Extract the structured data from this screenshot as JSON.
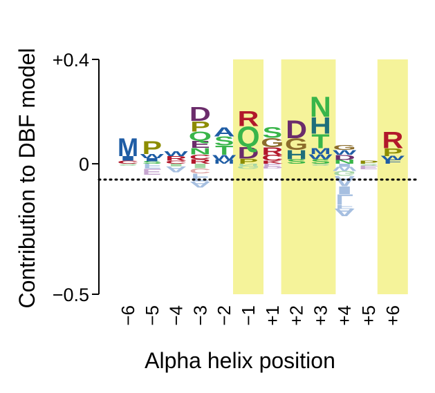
{
  "chart_data": {
    "type": "sequence-logo",
    "xlabel": "Alpha helix position",
    "ylabel": "Contribution to DBF model",
    "ytick_labels": [
      "+0.4",
      "0",
      "−0.5"
    ],
    "yticks": [
      0.4,
      0,
      -0.5
    ],
    "ylim": [
      -0.5,
      0.4
    ],
    "categories": [
      "−6",
      "−5",
      "−4",
      "−3",
      "−2",
      "−1",
      "+1",
      "+2",
      "+3",
      "+4",
      "+5",
      "+6"
    ],
    "highlighted_positions": [
      "−1",
      "+2",
      "+3",
      "+6"
    ],
    "highlight_color": "#f5f39a",
    "zero_line": "dotted",
    "positions": [
      {
        "pos": "−6",
        "positive": [
          {
            "aa": "C",
            "v": 0.012,
            "color": "#b2182b"
          },
          {
            "aa": "I",
            "v": 0.018,
            "color": "#1f5da5"
          },
          {
            "aa": "M",
            "v": 0.07,
            "color": "#1f5da5"
          }
        ],
        "negative": [
          {
            "aa": "S",
            "v": 0.008,
            "color": "#a6d6a6"
          }
        ]
      },
      {
        "pos": "−5",
        "positive": [
          {
            "aa": "S",
            "v": 0.01,
            "color": "#39b54a"
          },
          {
            "aa": "I",
            "v": 0.012,
            "color": "#1f5da5"
          },
          {
            "aa": "W",
            "v": 0.015,
            "color": "#1f5da5"
          },
          {
            "aa": "P",
            "v": 0.052,
            "color": "#8c8c00"
          }
        ],
        "negative": [
          {
            "aa": "F",
            "v": 0.02,
            "color": "#a6bfe0"
          },
          {
            "aa": "E",
            "v": 0.022,
            "color": "#c6a6d0"
          }
        ]
      },
      {
        "pos": "−4",
        "positive": [
          {
            "aa": "C",
            "v": 0.012,
            "color": "#b2182b"
          },
          {
            "aa": "R",
            "v": 0.018,
            "color": "#b2182b"
          },
          {
            "aa": "W",
            "v": 0.02,
            "color": "#1f5da5"
          }
        ],
        "negative": [
          {
            "aa": "I",
            "v": 0.01,
            "color": "#a6d6a6"
          },
          {
            "aa": "A",
            "v": 0.022,
            "color": "#a6bfe0"
          }
        ]
      },
      {
        "pos": "−3",
        "positive": [
          {
            "aa": "R",
            "v": 0.018,
            "color": "#b2182b"
          },
          {
            "aa": "C",
            "v": 0.018,
            "color": "#b2182b"
          },
          {
            "aa": "N",
            "v": 0.025,
            "color": "#39b54a"
          },
          {
            "aa": "E",
            "v": 0.028,
            "color": "#6b2c6b"
          },
          {
            "aa": "Q",
            "v": 0.035,
            "color": "#39b54a"
          },
          {
            "aa": "P",
            "v": 0.04,
            "color": "#8c8c00"
          },
          {
            "aa": "D",
            "v": 0.055,
            "color": "#6b2c6b"
          }
        ],
        "negative": [
          {
            "aa": "I",
            "v": 0.018,
            "color": "#a6d6a6"
          },
          {
            "aa": "C",
            "v": 0.02,
            "color": "#e0a6a6"
          },
          {
            "aa": "F",
            "v": 0.03,
            "color": "#a6bfe0"
          },
          {
            "aa": "A",
            "v": 0.022,
            "color": "#a6bfe0"
          }
        ]
      },
      {
        "pos": "−2",
        "positive": [
          {
            "aa": "M",
            "v": 0.015,
            "color": "#1f5da5"
          },
          {
            "aa": "W",
            "v": 0.02,
            "color": "#1f5da5"
          },
          {
            "aa": "T",
            "v": 0.035,
            "color": "#39b54a"
          },
          {
            "aa": "S",
            "v": 0.035,
            "color": "#39b54a"
          },
          {
            "aa": "A",
            "v": 0.035,
            "color": "#1f5da5"
          }
        ],
        "negative": []
      },
      {
        "pos": "−1",
        "positive": [
          {
            "aa": "P",
            "v": 0.02,
            "color": "#8c8c00"
          },
          {
            "aa": "D",
            "v": 0.045,
            "color": "#6b2c6b"
          },
          {
            "aa": "Q",
            "v": 0.08,
            "color": "#39b54a"
          },
          {
            "aa": "R",
            "v": 0.06,
            "color": "#b2182b"
          }
        ],
        "negative": [
          {
            "aa": "N",
            "v": 0.008,
            "color": "#a6d6a6"
          },
          {
            "aa": "G",
            "v": 0.012,
            "color": "#a6d6a6"
          }
        ]
      },
      {
        "pos": "+1",
        "positive": [
          {
            "aa": "K",
            "v": 0.012,
            "color": "#b2182b"
          },
          {
            "aa": "C",
            "v": 0.022,
            "color": "#b2182b"
          },
          {
            "aa": "R",
            "v": 0.03,
            "color": "#b2182b"
          },
          {
            "aa": "G",
            "v": 0.035,
            "color": "#8c6d2c"
          },
          {
            "aa": "S",
            "v": 0.042,
            "color": "#39b54a"
          }
        ],
        "negative": [
          {
            "aa": "E",
            "v": 0.01,
            "color": "#c6a6d0"
          },
          {
            "aa": "D",
            "v": 0.008,
            "color": "#c6a6d0"
          }
        ]
      },
      {
        "pos": "+2",
        "positive": [
          {
            "aa": "S",
            "v": 0.018,
            "color": "#39b54a"
          },
          {
            "aa": "H",
            "v": 0.035,
            "color": "#1f6f7a"
          },
          {
            "aa": "G",
            "v": 0.045,
            "color": "#8c6d2c"
          },
          {
            "aa": "D",
            "v": 0.07,
            "color": "#6b2c6b"
          }
        ],
        "negative": []
      },
      {
        "pos": "+3",
        "positive": [
          {
            "aa": "S",
            "v": 0.018,
            "color": "#39b54a"
          },
          {
            "aa": "W",
            "v": 0.02,
            "color": "#1f5da5"
          },
          {
            "aa": "M",
            "v": 0.022,
            "color": "#1f5da5"
          },
          {
            "aa": "T",
            "v": 0.055,
            "color": "#39b54a"
          },
          {
            "aa": "H",
            "v": 0.065,
            "color": "#1f6f7a"
          },
          {
            "aa": "N",
            "v": 0.08,
            "color": "#39b54a"
          }
        ],
        "negative": [
          {
            "aa": "S",
            "v": 0.008,
            "color": "#a6d6a6"
          }
        ]
      },
      {
        "pos": "+4",
        "positive": [
          {
            "aa": "N",
            "v": 0.015,
            "color": "#39b54a"
          },
          {
            "aa": "D",
            "v": 0.02,
            "color": "#6b2c6b"
          },
          {
            "aa": "W",
            "v": 0.018,
            "color": "#1f5da5"
          },
          {
            "aa": "G",
            "v": 0.02,
            "color": "#8c6d2c"
          }
        ],
        "negative": [
          {
            "aa": "I",
            "v": 0.012,
            "color": "#a6bfe0"
          },
          {
            "aa": "W",
            "v": 0.015,
            "color": "#a6bfe0"
          },
          {
            "aa": "G",
            "v": 0.02,
            "color": "#a6d6a6"
          },
          {
            "aa": "A",
            "v": 0.04,
            "color": "#a6bfe0"
          },
          {
            "aa": "I",
            "v": 0.03,
            "color": "#a6bfe0"
          },
          {
            "aa": "L",
            "v": 0.04,
            "color": "#a6bfe0"
          },
          {
            "aa": "F",
            "v": 0.015,
            "color": "#a6bfe0"
          },
          {
            "aa": "A",
            "v": 0.03,
            "color": "#a6bfe0"
          }
        ]
      },
      {
        "pos": "+5",
        "positive": [
          {
            "aa": "P",
            "v": 0.012,
            "color": "#8c8c00"
          }
        ],
        "negative": [
          {
            "aa": "S",
            "v": 0.008,
            "color": "#a6d6a6"
          },
          {
            "aa": "E",
            "v": 0.014,
            "color": "#c6a6d0"
          }
        ]
      },
      {
        "pos": "+6",
        "positive": [
          {
            "aa": "F",
            "v": 0.015,
            "color": "#1f5da5"
          },
          {
            "aa": "W",
            "v": 0.015,
            "color": "#1f5da5"
          },
          {
            "aa": "P",
            "v": 0.03,
            "color": "#8c8c00"
          },
          {
            "aa": "R",
            "v": 0.065,
            "color": "#b2182b"
          }
        ],
        "negative": []
      }
    ]
  }
}
